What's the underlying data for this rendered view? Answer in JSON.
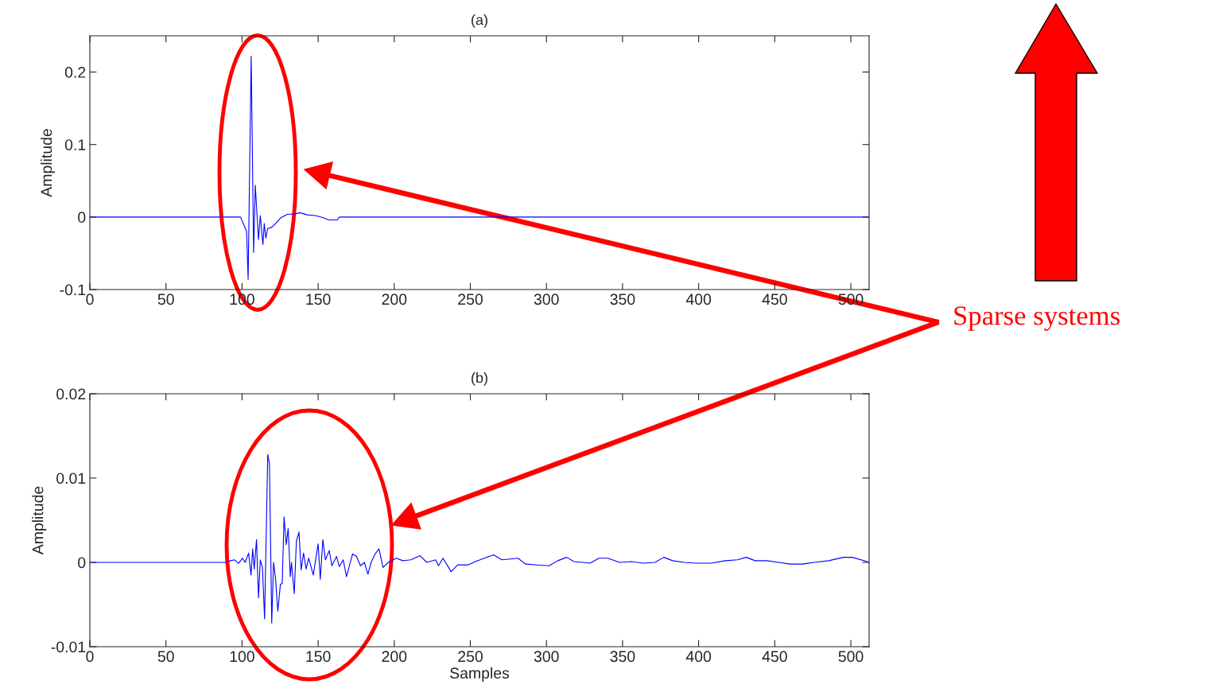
{
  "chart_data": [
    {
      "type": "line",
      "title": "(a)",
      "ylabel": "Amplitude",
      "xlim": [
        0,
        512
      ],
      "ylim": [
        -0.1,
        0.25
      ],
      "xticks": [
        0,
        50,
        100,
        150,
        200,
        250,
        300,
        350,
        400,
        450,
        500
      ],
      "yticks": [
        -0.1,
        0,
        0.1,
        0.2
      ],
      "annotations": [
        "Sparse systems"
      ],
      "series": [
        {
          "color": "#0000ff",
          "x": [
            0,
            99,
            103,
            104,
            106,
            107.6,
            108.7,
            110.8,
            112,
            113.7,
            114.6,
            115.6,
            116.8,
            119.5,
            122,
            125.4,
            130,
            134.3,
            137.8,
            143,
            148.2,
            153.4,
            157,
            162.5,
            164,
            512
          ],
          "values": [
            0,
            0,
            -0.02,
            -0.086,
            0.222,
            -0.049,
            0.044,
            -0.031,
            0.002,
            -0.038,
            -0.009,
            -0.029,
            -0.016,
            -0.014,
            -0.009,
            -0.001,
            0.004,
            0.004,
            0.006,
            0.003,
            0.002,
            -0.001,
            -0.004,
            -0.004,
            0,
            0
          ]
        }
      ]
    },
    {
      "type": "line",
      "title": "(b)",
      "xlabel": "Samples",
      "ylabel": "Amplitude",
      "xlim": [
        0,
        512
      ],
      "ylim": [
        -0.01,
        0.02
      ],
      "xticks": [
        0,
        50,
        100,
        150,
        200,
        250,
        300,
        350,
        400,
        450,
        500
      ],
      "yticks": [
        -0.01,
        0,
        0.01,
        0.02
      ],
      "series": [
        {
          "color": "#0000ff",
          "x": [
            0,
            89,
            92.5,
            95,
            97.7,
            100.3,
            102,
            104.3,
            105.9,
            107,
            108,
            109.5,
            110.8,
            112,
            113.4,
            114.8,
            116.9,
            118,
            119.5,
            120.7,
            122,
            123.5,
            125.2,
            126.4,
            127.6,
            129,
            130.3,
            131.7,
            132.5,
            134.3,
            135.7,
            137.4,
            138.8,
            140.4,
            142.1,
            143.8,
            146.8,
            150,
            151.4,
            153.1,
            154.8,
            157.3,
            159,
            162.1,
            163.9,
            166.5,
            168.6,
            172.6,
            175.2,
            177.8,
            180.4,
            182.7,
            184.8,
            187.4,
            190,
            192.6,
            196.1,
            201.3,
            205.7,
            210.9,
            217,
            221.4,
            227.2,
            229.1,
            232,
            237.4,
            241.7,
            248.4,
            253.3,
            259.1,
            265.3,
            270.7,
            276.5,
            281.3,
            286.2,
            293.9,
            301.7,
            307.5,
            313.3,
            318.1,
            323.9,
            328.7,
            334.5,
            340.3,
            348.1,
            355.8,
            363.6,
            371.3,
            377.1,
            382.9,
            390.6,
            398.4,
            408,
            417.7,
            425.5,
            431.3,
            437.1,
            444.8,
            452.6,
            460.3,
            468.1,
            475.8,
            485.5,
            495.1,
            501,
            510.7,
            512
          ],
          "values": [
            0,
            0,
            0.0002,
            0.0003,
            -0.0001,
            0.0005,
            0,
            0.0011,
            -0.0015,
            0.0016,
            -0.0008,
            0.0027,
            -0.0042,
            0.0003,
            -0.0006,
            -0.0067,
            0.0128,
            0.0117,
            -0.0072,
            0,
            -0.0019,
            -0.0058,
            -0.0026,
            -0.0025,
            0.0054,
            0.0021,
            0.004,
            -0.0017,
            0,
            -0.0037,
            0.0025,
            0.0036,
            -0.0009,
            0.0011,
            -0.0008,
            0.0005,
            -0.0015,
            0.0022,
            -0.002,
            0.0027,
            0.0003,
            0.0014,
            -0.0004,
            0.0007,
            -0.0005,
            0.0003,
            -0.0017,
            0.001,
            0.0007,
            -0.0004,
            0,
            -0.0014,
            0,
            0.001,
            0.0016,
            -0.0006,
            0,
            0.0005,
            0.0002,
            0.0003,
            0.0008,
            0,
            0.0003,
            -0.0004,
            0.0005,
            -0.0011,
            -0.0003,
            -0.0003,
            0.0001,
            0.0005,
            0.0009,
            0.0003,
            0.0004,
            0.0005,
            -0.0002,
            -0.0003,
            -0.0004,
            0.0002,
            0.0006,
            0.0001,
            0,
            -0.0001,
            0.0005,
            0.0005,
            0,
            0.0001,
            -0.0001,
            0,
            0.0006,
            0.0002,
            0,
            -0.0001,
            -0.0001,
            0.0002,
            0.0003,
            0.0006,
            0.0002,
            0.0002,
            0,
            -0.0002,
            -0.0002,
            0,
            0.0002,
            0.0006,
            0.0006,
            0.0001,
            0
          ]
        }
      ]
    }
  ]
}
